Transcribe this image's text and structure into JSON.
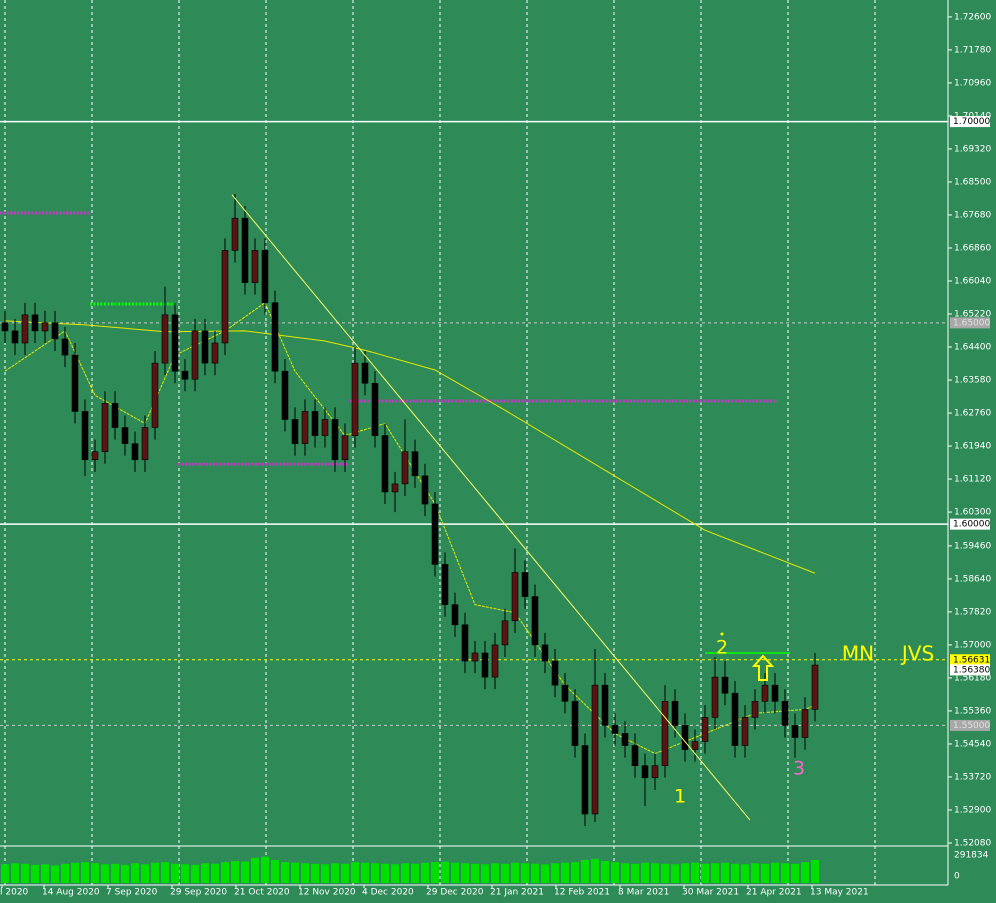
{
  "chart_data": {
    "type": "candlestick",
    "background": "#2e8b57",
    "grid": true,
    "up_color": "#5a1414",
    "down_color": "#000000",
    "x_labels": [
      "l 2020",
      "14 Aug 2020",
      "7 Sep 2020",
      "29 Sep 2020",
      "21 Oct 2020",
      "12 Nov 2020",
      "4 Dec 2020",
      "29 Dec 2020",
      "21 Jan 2021",
      "12 Feb 2021",
      "8 Mar 2021",
      "30 Mar 2021",
      "21 Apr 2021",
      "13 May 2021"
    ],
    "open": [
      1.65,
      1.648,
      1.645,
      1.652,
      1.648,
      1.65,
      1.646,
      1.642,
      1.628,
      1.616,
      1.618,
      1.63,
      1.624,
      1.62,
      1.616,
      1.624,
      1.64,
      1.652,
      1.638,
      1.636,
      1.648,
      1.64,
      1.645,
      1.668,
      1.676,
      1.66,
      1.668,
      1.655,
      1.638,
      1.626,
      1.62,
      1.628,
      1.622,
      1.626,
      1.616,
      1.622,
      1.64,
      1.635,
      1.622,
      1.608,
      1.61,
      1.618,
      1.612,
      1.605,
      1.59,
      1.58,
      1.575,
      1.566,
      1.568,
      1.562,
      1.57,
      1.576,
      1.588,
      1.582,
      1.57,
      1.566,
      1.56,
      1.556,
      1.545,
      1.528,
      1.56,
      1.55,
      1.548,
      1.545,
      1.54,
      1.537,
      1.54,
      1.556,
      1.55,
      1.544,
      1.546,
      1.552,
      1.562,
      1.558,
      1.545,
      1.552,
      1.556,
      1.56,
      1.556,
      1.55,
      1.547,
      1.554
    ],
    "high": [
      1.653,
      1.651,
      1.655,
      1.655,
      1.653,
      1.653,
      1.649,
      1.645,
      1.631,
      1.621,
      1.633,
      1.633,
      1.627,
      1.623,
      1.627,
      1.643,
      1.659,
      1.655,
      1.641,
      1.651,
      1.651,
      1.648,
      1.671,
      1.682,
      1.679,
      1.671,
      1.671,
      1.658,
      1.641,
      1.629,
      1.631,
      1.631,
      1.629,
      1.629,
      1.625,
      1.644,
      1.643,
      1.638,
      1.625,
      1.613,
      1.626,
      1.621,
      1.615,
      1.608,
      1.593,
      1.583,
      1.578,
      1.571,
      1.571,
      1.573,
      1.579,
      1.594,
      1.591,
      1.585,
      1.573,
      1.569,
      1.563,
      1.559,
      1.548,
      1.569,
      1.563,
      1.553,
      1.551,
      1.548,
      1.543,
      1.543,
      1.56,
      1.559,
      1.553,
      1.549,
      1.555,
      1.567,
      1.566,
      1.561,
      1.555,
      1.559,
      1.563,
      1.563,
      1.559,
      1.553,
      1.557,
      1.568
    ],
    "low": [
      1.645,
      1.642,
      1.642,
      1.645,
      1.645,
      1.643,
      1.639,
      1.625,
      1.612,
      1.613,
      1.615,
      1.621,
      1.617,
      1.613,
      1.613,
      1.621,
      1.637,
      1.635,
      1.633,
      1.633,
      1.637,
      1.637,
      1.642,
      1.665,
      1.657,
      1.657,
      1.652,
      1.635,
      1.623,
      1.617,
      1.617,
      1.619,
      1.619,
      1.613,
      1.613,
      1.619,
      1.632,
      1.619,
      1.605,
      1.603,
      1.607,
      1.609,
      1.602,
      1.587,
      1.577,
      1.572,
      1.563,
      1.563,
      1.559,
      1.559,
      1.567,
      1.573,
      1.579,
      1.567,
      1.563,
      1.557,
      1.553,
      1.542,
      1.525,
      1.526,
      1.547,
      1.545,
      1.542,
      1.537,
      1.53,
      1.534,
      1.537,
      1.547,
      1.541,
      1.541,
      1.543,
      1.549,
      1.555,
      1.542,
      1.542,
      1.549,
      1.553,
      1.553,
      1.547,
      1.542,
      1.544,
      1.551
    ],
    "close": [
      1.648,
      1.645,
      1.652,
      1.648,
      1.65,
      1.646,
      1.642,
      1.628,
      1.616,
      1.618,
      1.63,
      1.624,
      1.62,
      1.616,
      1.624,
      1.64,
      1.652,
      1.638,
      1.636,
      1.648,
      1.64,
      1.645,
      1.668,
      1.676,
      1.66,
      1.668,
      1.655,
      1.638,
      1.626,
      1.62,
      1.628,
      1.622,
      1.626,
      1.616,
      1.622,
      1.64,
      1.635,
      1.622,
      1.608,
      1.61,
      1.618,
      1.612,
      1.605,
      1.59,
      1.58,
      1.575,
      1.566,
      1.568,
      1.562,
      1.57,
      1.576,
      1.588,
      1.582,
      1.57,
      1.566,
      1.56,
      1.556,
      1.545,
      1.528,
      1.56,
      1.55,
      1.548,
      1.545,
      1.54,
      1.537,
      1.54,
      1.556,
      1.55,
      1.544,
      1.546,
      1.552,
      1.562,
      1.558,
      1.545,
      1.552,
      1.556,
      1.56,
      1.556,
      1.55,
      1.547,
      1.554,
      1.565
    ],
    "volume": [
      170000,
      180000,
      175000,
      165000,
      170000,
      160000,
      175000,
      185000,
      190000,
      180000,
      170000,
      175000,
      165000,
      180000,
      170000,
      185000,
      190000,
      175000,
      170000,
      165000,
      180000,
      175000,
      190000,
      200000,
      195000,
      230000,
      240000,
      210000,
      190000,
      185000,
      180000,
      175000,
      170000,
      180000,
      175000,
      190000,
      185000,
      180000,
      175000,
      170000,
      180000,
      175000,
      185000,
      190000,
      195000,
      185000,
      180000,
      175000,
      170000,
      180000,
      175000,
      185000,
      180000,
      175000,
      170000,
      180000,
      185000,
      190000,
      210000,
      220000,
      200000,
      190000,
      180000,
      175000,
      185000,
      180000,
      175000,
      170000,
      180000,
      185000,
      175000,
      180000,
      185000,
      175000,
      170000,
      180000,
      175000,
      185000,
      180000,
      175000,
      190000,
      210000
    ],
    "volume_color": "#00e000",
    "ylim": [
      1.5203,
      1.7302
    ],
    "yticks": [
      {
        "value": 1.726,
        "label": "1.72600"
      },
      {
        "value": 1.7178,
        "label": "1.71780"
      },
      {
        "value": 1.7096,
        "label": "1.70960"
      },
      {
        "value": 1.7014,
        "label": "1.70140"
      },
      {
        "value": 1.6932,
        "label": "1.69320"
      },
      {
        "value": 1.685,
        "label": "1.68500"
      },
      {
        "value": 1.6768,
        "label": "1.67680"
      },
      {
        "value": 1.6686,
        "label": "1.66860"
      },
      {
        "value": 1.6604,
        "label": "1.66040"
      },
      {
        "value": 1.6522,
        "label": "1.65220"
      },
      {
        "value": 1.644,
        "label": "1.64400"
      },
      {
        "value": 1.6358,
        "label": "1.63580"
      },
      {
        "value": 1.6276,
        "label": "1.62760"
      },
      {
        "value": 1.6194,
        "label": "1.61940"
      },
      {
        "value": 1.6112,
        "label": "1.61120"
      },
      {
        "value": 1.603,
        "label": "1.60300"
      },
      {
        "value": 1.5946,
        "label": "1.59460"
      },
      {
        "value": 1.5864,
        "label": "1.58640"
      },
      {
        "value": 1.5782,
        "label": "1.57820"
      },
      {
        "value": 1.57,
        "label": "1.57000"
      },
      {
        "value": 1.5618,
        "label": "1.56180"
      },
      {
        "value": 1.5536,
        "label": "1.55360"
      },
      {
        "value": 1.5454,
        "label": "1.54540"
      },
      {
        "value": 1.5372,
        "label": "1.53720"
      },
      {
        "value": 1.529,
        "label": "1.52900"
      },
      {
        "value": 1.5208,
        "label": "1.52080"
      }
    ],
    "vlim": [
      0,
      291834
    ],
    "vticks": [
      0,
      291834
    ],
    "levels": [
      {
        "value": 1.7,
        "label": "1.70000",
        "dashed": false,
        "color": "#ffffff",
        "box": "#ffffff",
        "text_color": "#000000"
      },
      {
        "value": 1.6,
        "label": "1.60000",
        "dashed": false,
        "color": "#ffffff",
        "box": "#ffffff",
        "text_color": "#000000"
      },
      {
        "value": 1.65,
        "label": "1.65000",
        "dashed": true,
        "color": "#c8c8c8",
        "box": "#a8a8a8",
        "text_color": "#e0e0e0"
      },
      {
        "value": 1.55,
        "label": "1.55000",
        "dashed": true,
        "color": "#c8c8c8",
        "box": "#a8a8a8",
        "text_color": "#e0e0e0"
      },
      {
        "value": 1.56631,
        "label": "1.56631",
        "dashed": true,
        "color": "#ffff00",
        "box": "#ffff00",
        "text_color": "#000000"
      },
      {
        "value": 1.5638,
        "label": "1.56380",
        "dashed": false,
        "color": "none",
        "box": "#ffffff",
        "text_color": "#000000"
      }
    ],
    "segments": [
      {
        "x": [
          -0.5,
          8.5
        ],
        "value": 1.6773,
        "color": "#cc33cc",
        "dotted": true
      },
      {
        "x": [
          8.5,
          17.3
        ],
        "value": 1.6547,
        "color": "#00ff00",
        "dotted": true
      },
      {
        "x": [
          17.3,
          34.5
        ],
        "value": 1.6149,
        "color": "#cc33cc",
        "dotted": true
      },
      {
        "x": [
          34.5,
          77.3
        ],
        "value": 1.6306,
        "color": "#cc33cc",
        "dotted": true
      },
      {
        "x": [
          70,
          78.5
        ],
        "value": 1.568,
        "color": "#00ff00",
        "dotted": false
      }
    ],
    "moving_averages": [
      {
        "color": "#e8e800",
        "x": [
          0,
          8,
          16,
          24,
          32,
          36,
          43,
          50,
          60,
          70,
          81
        ],
        "values": [
          1.6505,
          1.6495,
          1.6478,
          1.648,
          1.6455,
          1.6432,
          1.6383,
          1.6283,
          1.6134,
          1.5985,
          1.5878
        ]
      },
      {
        "color": "#e8e800",
        "x": [
          0,
          6,
          9,
          14,
          17,
          22,
          26,
          29,
          34,
          38,
          43,
          47,
          51,
          56,
          61,
          65,
          70,
          75,
          80,
          81
        ],
        "values": [
          1.638,
          1.648,
          1.632,
          1.625,
          1.642,
          1.648,
          1.655,
          1.638,
          1.622,
          1.625,
          1.605,
          1.58,
          1.578,
          1.56,
          1.548,
          1.543,
          1.548,
          1.553,
          1.554,
          1.555
        ]
      }
    ],
    "trendline": {
      "color": "#ffff66",
      "x": [
        22.7,
        74.5
      ],
      "values": [
        1.6818,
        1.5265
      ]
    },
    "annotations": [
      {
        "text": "1",
        "color": "#ffff00"
      },
      {
        "text": "2",
        "color": "#ffff00"
      },
      {
        "text": "3",
        "color": "#ff66cc"
      },
      {
        "text": "MN",
        "color": "#ffff00"
      },
      {
        "text": "JVS",
        "color": "#ffff00"
      }
    ]
  }
}
